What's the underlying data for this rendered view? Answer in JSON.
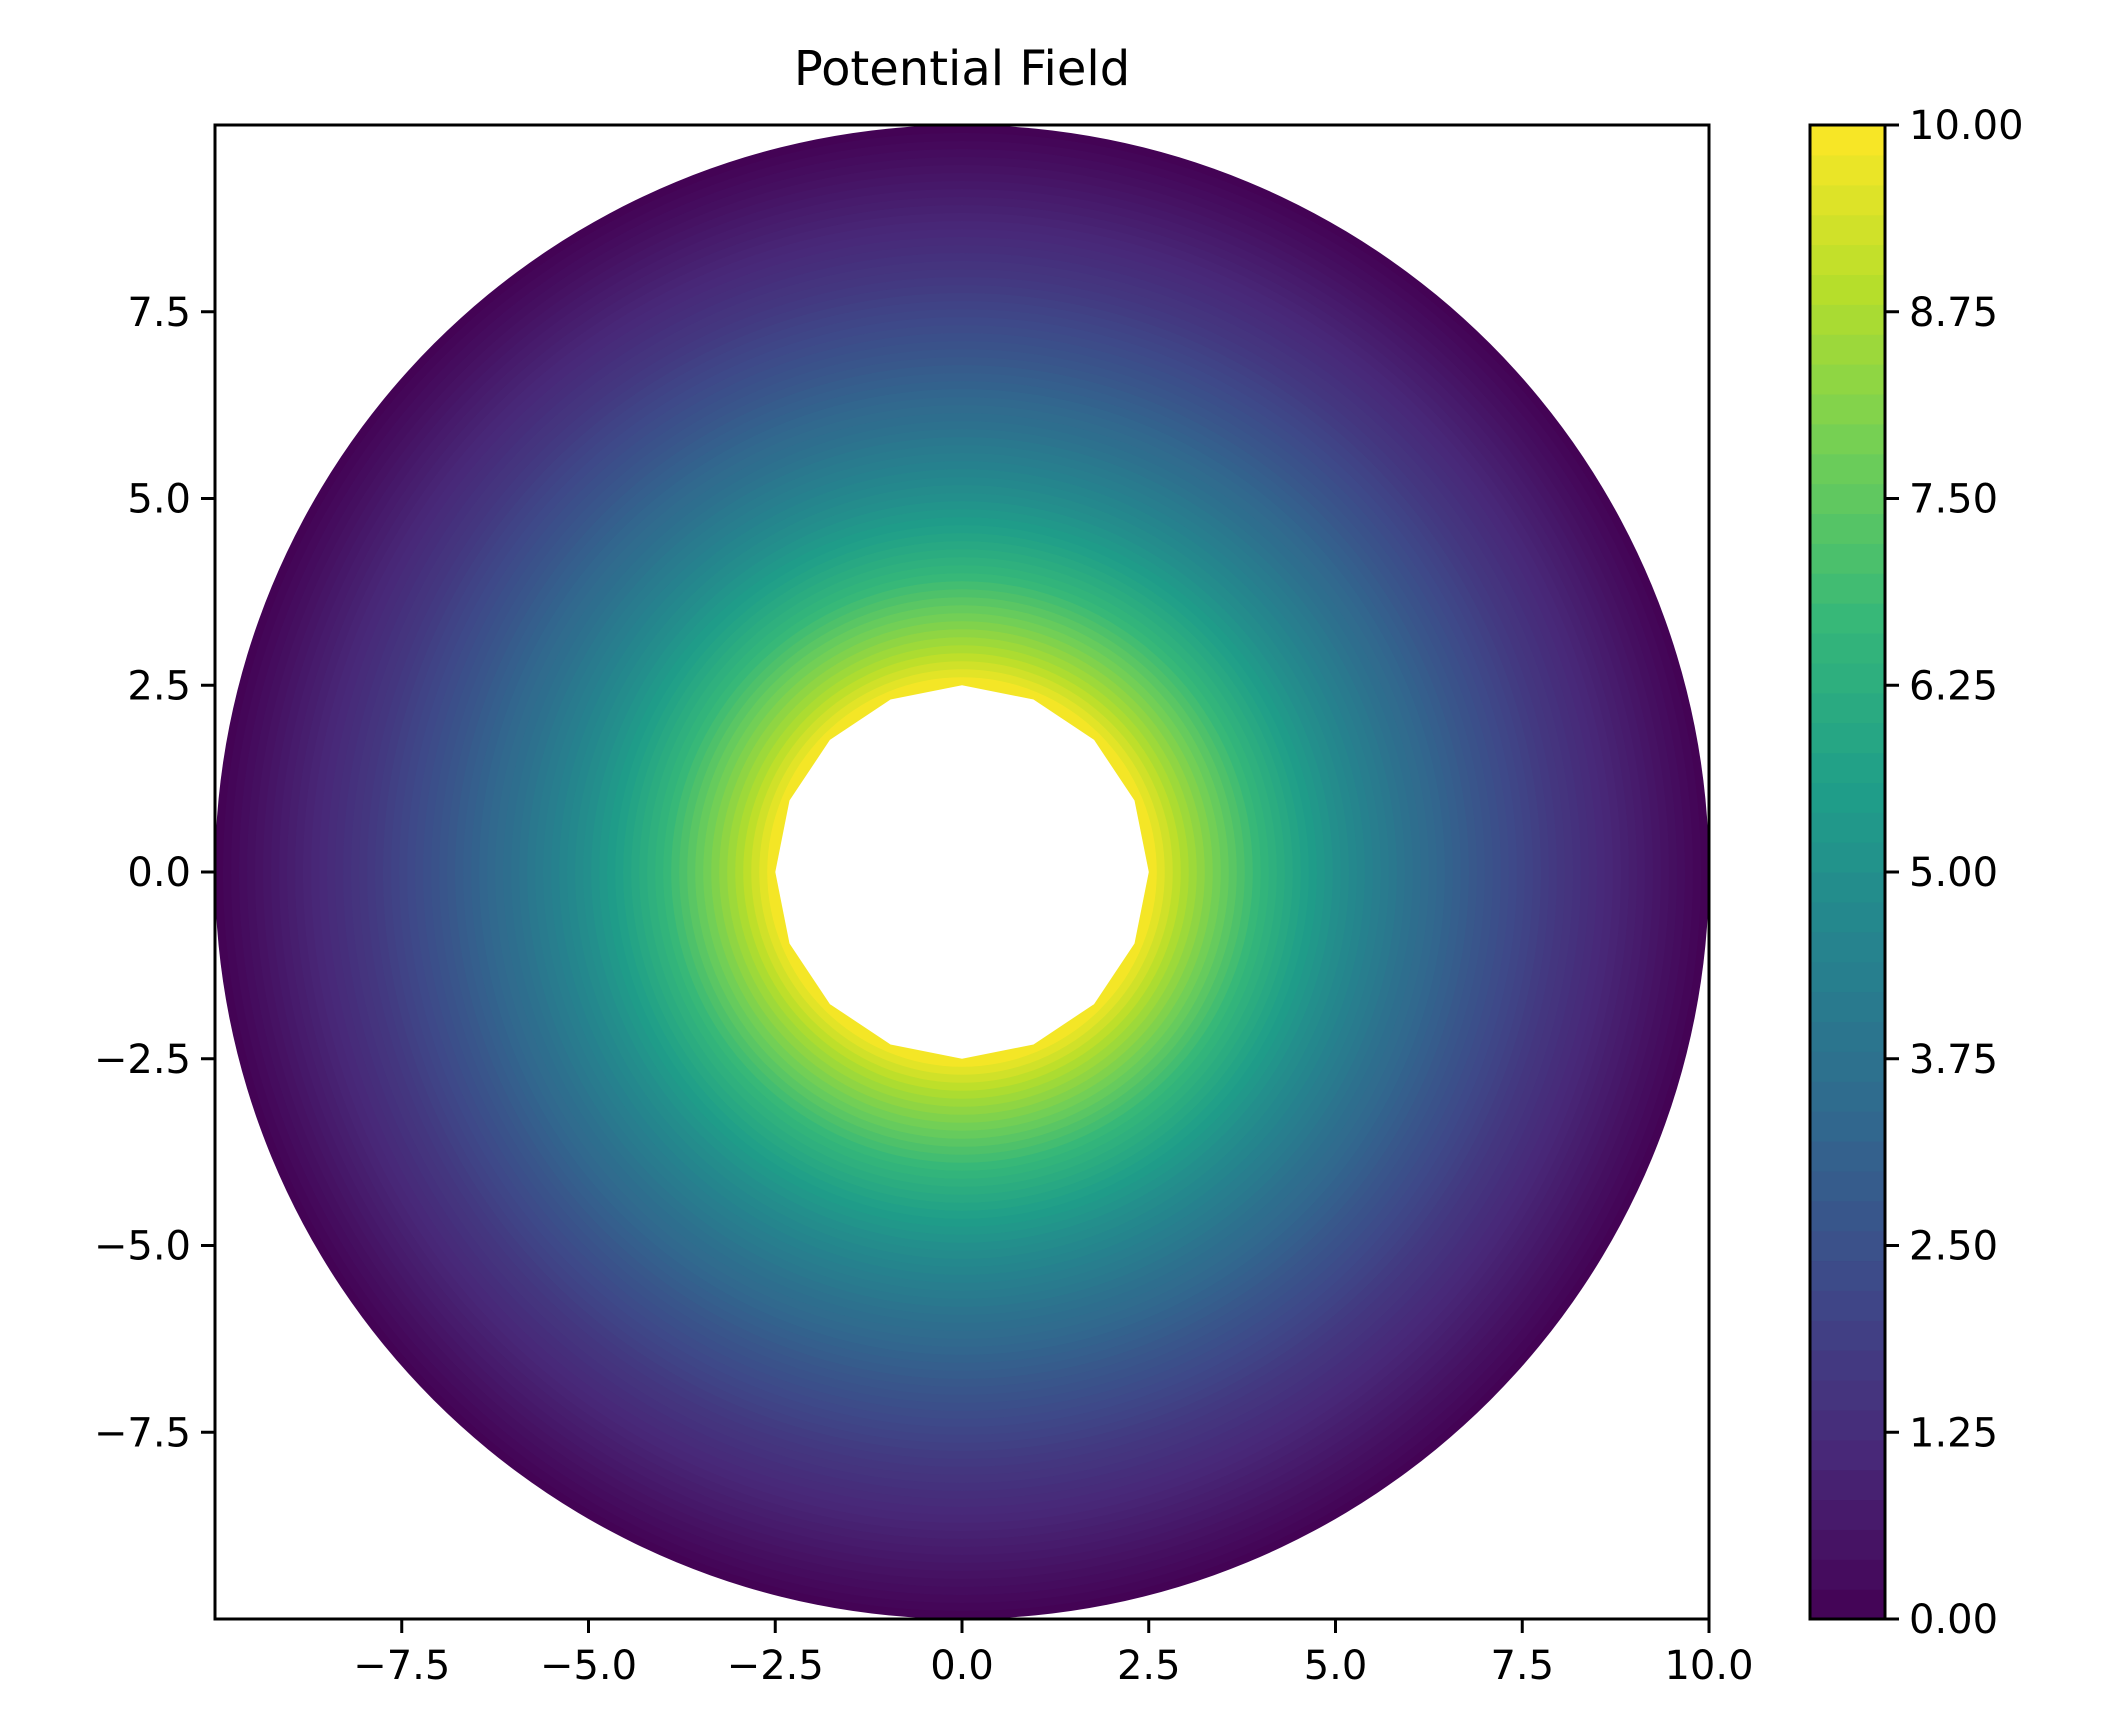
{
  "chart_data": {
    "type": "contourf",
    "title": "Potential Field",
    "xlabel": "",
    "ylabel": "",
    "xlim": [
      -10,
      10
    ],
    "ylim": [
      -10,
      10
    ],
    "x_ticks": [
      -7.5,
      -5.0,
      -2.5,
      0.0,
      2.5,
      5.0,
      7.5,
      10.0
    ],
    "x_tick_labels": [
      "−7.5",
      "−5.0",
      "−2.5",
      "0.0",
      "2.5",
      "5.0",
      "7.5",
      "10.0"
    ],
    "y_ticks": [
      7.5,
      5.0,
      2.5,
      0.0,
      -2.5,
      -5.0,
      -7.5
    ],
    "y_tick_labels": [
      "7.5",
      "5.0",
      "2.5",
      "0.0",
      "−2.5",
      "−5.0",
      "−7.5"
    ],
    "field": {
      "description_of_data": "radially symmetric potential, max at inner radius, zero at outer radius",
      "inner_radius": 2.5,
      "outer_radius": 10.0,
      "value_at_inner_radius": 10.0,
      "value_at_outer_radius": 0.0,
      "radial_samples": [
        {
          "r": 2.5,
          "v": 10.0
        },
        {
          "r": 3.0,
          "v": 8.7
        },
        {
          "r": 4.0,
          "v": 6.6
        },
        {
          "r": 5.0,
          "v": 5.0
        },
        {
          "r": 6.0,
          "v": 3.7
        },
        {
          "r": 7.0,
          "v": 2.6
        },
        {
          "r": 8.0,
          "v": 1.6
        },
        {
          "r": 9.0,
          "v": 0.8
        },
        {
          "r": 10.0,
          "v": 0.0
        }
      ],
      "contour_levels": 50
    },
    "colorbar": {
      "colormap": "viridis",
      "range": [
        0.0,
        10.0
      ],
      "ticks": [
        0.0,
        1.25,
        2.5,
        3.75,
        5.0,
        6.25,
        7.5,
        8.75,
        10.0
      ],
      "tick_labels": [
        "0.00",
        "1.25",
        "2.50",
        "3.75",
        "5.00",
        "6.25",
        "7.50",
        "8.75",
        "10.00"
      ]
    },
    "grid": false,
    "colors": {
      "viridis_stops": [
        "#440154",
        "#482878",
        "#3e4989",
        "#31688e",
        "#26828e",
        "#1f9e89",
        "#35b779",
        "#6ece58",
        "#b5de2b",
        "#fde725"
      ]
    }
  }
}
